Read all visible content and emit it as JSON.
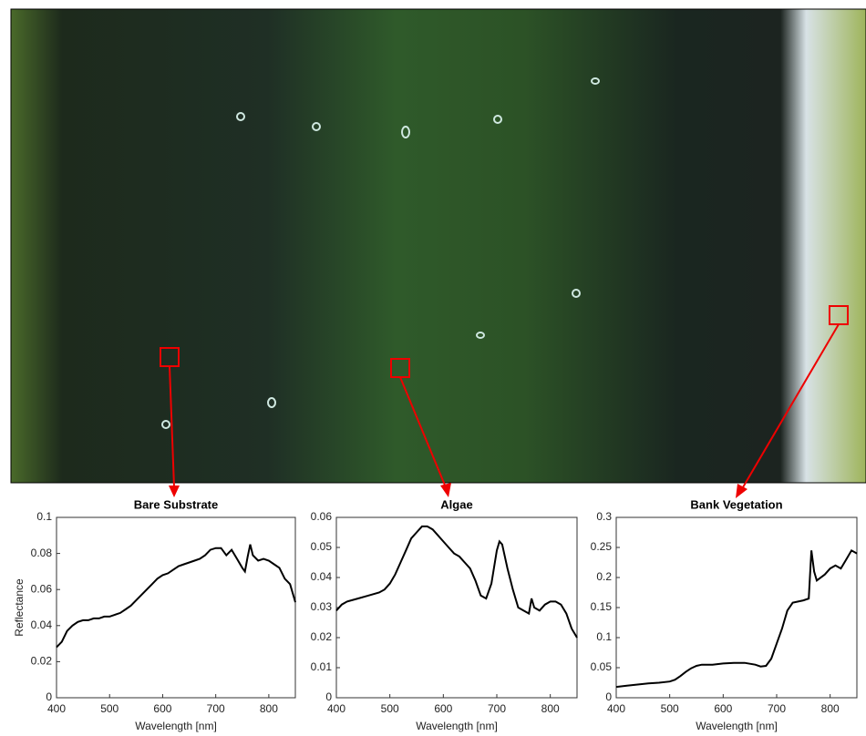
{
  "chart_data": [
    {
      "type": "line",
      "title": "Bare Substrate",
      "xlabel": "Wavelength [nm]",
      "ylabel": "Reflectance",
      "x": [
        400,
        410,
        420,
        430,
        440,
        450,
        460,
        470,
        480,
        490,
        500,
        510,
        520,
        530,
        540,
        550,
        560,
        570,
        580,
        590,
        600,
        610,
        620,
        630,
        640,
        650,
        660,
        670,
        680,
        690,
        700,
        710,
        720,
        730,
        740,
        750,
        755,
        760,
        765,
        770,
        780,
        790,
        800,
        810,
        820,
        830,
        840,
        850
      ],
      "values": [
        0.028,
        0.031,
        0.037,
        0.04,
        0.042,
        0.043,
        0.043,
        0.044,
        0.044,
        0.045,
        0.045,
        0.046,
        0.047,
        0.049,
        0.051,
        0.054,
        0.057,
        0.06,
        0.063,
        0.066,
        0.068,
        0.069,
        0.071,
        0.073,
        0.074,
        0.075,
        0.076,
        0.077,
        0.079,
        0.082,
        0.083,
        0.083,
        0.079,
        0.082,
        0.077,
        0.072,
        0.07,
        0.078,
        0.085,
        0.079,
        0.076,
        0.077,
        0.076,
        0.074,
        0.072,
        0.066,
        0.063,
        0.053
      ],
      "color": "#000000",
      "xlim": [
        400,
        850
      ],
      "ylim": [
        0,
        0.1
      ],
      "xticks": [
        400,
        500,
        600,
        700,
        800
      ],
      "yticks": [
        0,
        0.02,
        0.04,
        0.06,
        0.08,
        0.1
      ]
    },
    {
      "type": "line",
      "title": "Algae",
      "xlabel": "Wavelength [nm]",
      "x": [
        400,
        410,
        420,
        440,
        460,
        480,
        490,
        500,
        510,
        520,
        530,
        540,
        550,
        560,
        570,
        580,
        590,
        600,
        610,
        620,
        630,
        640,
        650,
        660,
        670,
        680,
        690,
        700,
        705,
        710,
        720,
        730,
        740,
        750,
        760,
        765,
        770,
        780,
        790,
        800,
        810,
        820,
        830,
        840,
        850
      ],
      "values": [
        0.029,
        0.031,
        0.032,
        0.033,
        0.034,
        0.035,
        0.036,
        0.038,
        0.041,
        0.045,
        0.049,
        0.053,
        0.055,
        0.057,
        0.057,
        0.056,
        0.054,
        0.052,
        0.05,
        0.048,
        0.047,
        0.045,
        0.043,
        0.039,
        0.034,
        0.033,
        0.038,
        0.049,
        0.052,
        0.051,
        0.043,
        0.036,
        0.03,
        0.029,
        0.028,
        0.033,
        0.03,
        0.029,
        0.031,
        0.032,
        0.032,
        0.031,
        0.028,
        0.023,
        0.02
      ],
      "color": "#000000",
      "xlim": [
        400,
        850
      ],
      "ylim": [
        0,
        0.06
      ],
      "xticks": [
        400,
        500,
        600,
        700,
        800
      ],
      "yticks": [
        0,
        0.01,
        0.02,
        0.03,
        0.04,
        0.05,
        0.06
      ]
    },
    {
      "type": "line",
      "title": "Bank Vegetation",
      "xlabel": "Wavelength [nm]",
      "x": [
        400,
        420,
        440,
        460,
        480,
        500,
        510,
        520,
        530,
        540,
        550,
        560,
        580,
        600,
        620,
        640,
        660,
        670,
        680,
        690,
        700,
        710,
        720,
        730,
        740,
        750,
        760,
        765,
        770,
        775,
        790,
        800,
        810,
        820,
        830,
        840,
        850
      ],
      "values": [
        0.018,
        0.02,
        0.022,
        0.024,
        0.025,
        0.027,
        0.03,
        0.036,
        0.043,
        0.049,
        0.053,
        0.055,
        0.055,
        0.057,
        0.058,
        0.058,
        0.055,
        0.052,
        0.053,
        0.065,
        0.09,
        0.115,
        0.145,
        0.158,
        0.16,
        0.162,
        0.165,
        0.245,
        0.21,
        0.195,
        0.205,
        0.215,
        0.22,
        0.215,
        0.23,
        0.245,
        0.24
      ],
      "color": "#000000",
      "xlim": [
        400,
        850
      ],
      "ylim": [
        0,
        0.3
      ],
      "xticks": [
        400,
        500,
        600,
        700,
        800
      ],
      "yticks": [
        0,
        0.05,
        0.1,
        0.15,
        0.2,
        0.25,
        0.3
      ]
    }
  ]
}
